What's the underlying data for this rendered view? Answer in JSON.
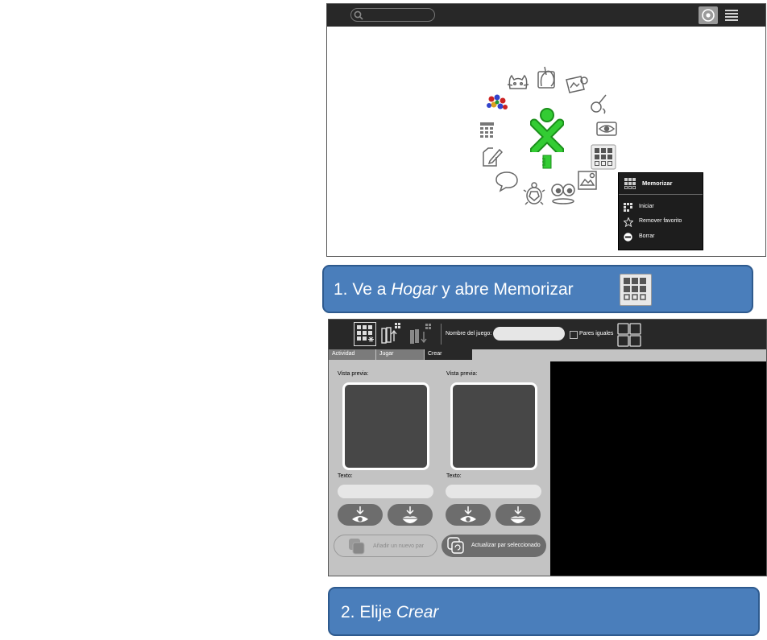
{
  "home": {
    "ring_icons": [
      "cat-icon",
      "paint-hand-icon",
      "image-card-icon",
      "brush-icon",
      "eye-icon",
      "memorize-grid-icon",
      "puzzle-icon",
      "eyes-icon",
      "turtle-icon",
      "speech-bubble-icon",
      "write-icon",
      "calculator-icon",
      "flowers-icon"
    ],
    "context_menu": {
      "title": "Memorizar",
      "items": [
        {
          "icon": "play-grid-icon",
          "label": "Iniciar"
        },
        {
          "icon": "star-icon",
          "label": "Remover favorito"
        },
        {
          "icon": "minus-circle-icon",
          "label": "Borrar"
        }
      ]
    },
    "colors": {
      "xo_fill": "#33cc33",
      "xo_stroke": "#1b8f1b",
      "toolbar": "#282828"
    }
  },
  "callout1": {
    "prefix": "1. Ve a ",
    "em": "Hogar",
    "suffix": " y abre Memorizar"
  },
  "callout2": {
    "prefix": "2. Elije ",
    "em": "Crear"
  },
  "memorize": {
    "game_name_label": "Nombre del juego:",
    "game_name_value": "",
    "equal_pairs_label": "Pares iguales",
    "tabs": [
      {
        "label": "Actividad"
      },
      {
        "label": "Jugar"
      },
      {
        "label": "Crear"
      }
    ],
    "active_tab": "Crear",
    "columns": [
      {
        "preview_label": "Vista previa:",
        "text_label": "Texto:"
      },
      {
        "preview_label": "Vista previa:",
        "text_label": "Texto:"
      }
    ],
    "add_pair_label": "Añadir un nuevo par",
    "update_pair_label": "Actualizar par seleccionado",
    "colors": {
      "callout": "#4a7ebb",
      "panel": "#c3c3c3",
      "preview": "#474747",
      "canvas": "#000000"
    }
  }
}
